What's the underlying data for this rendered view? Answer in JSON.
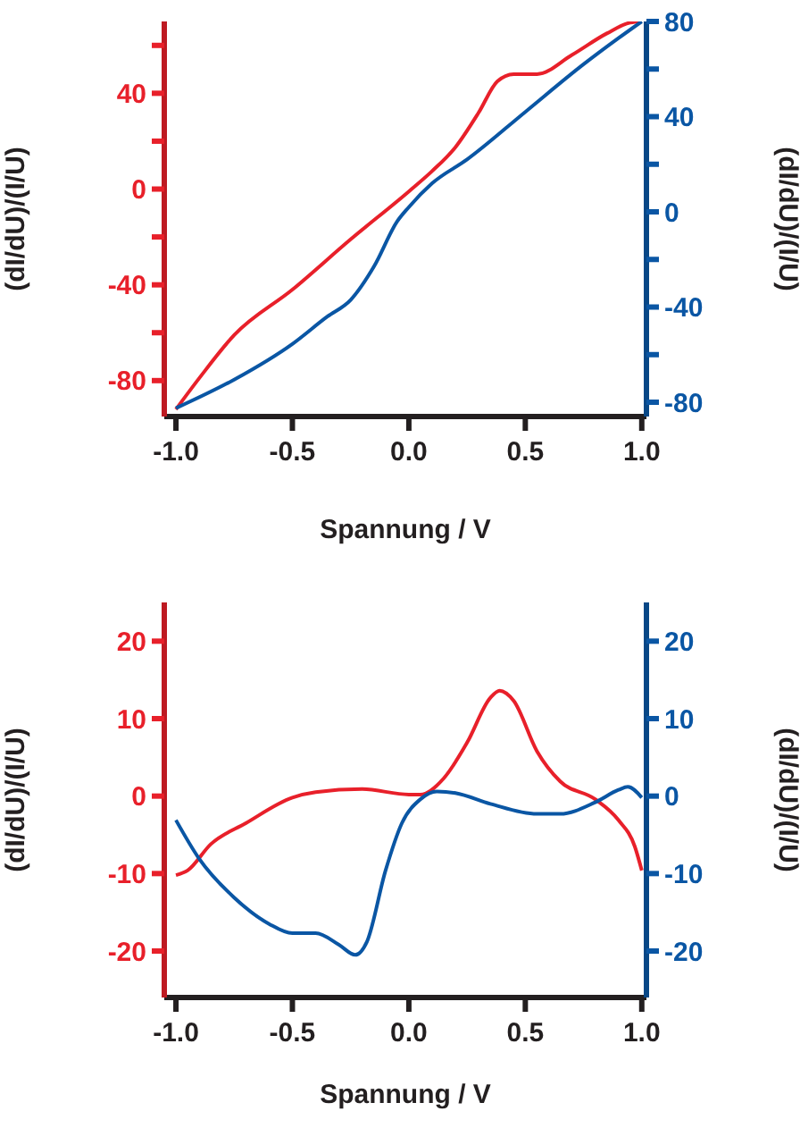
{
  "chart_data": [
    {
      "type": "line",
      "xlabel": "Spannung / V",
      "ylabel": "(dI/dU)/(I/U)",
      "y2label": "(dI/dU)/(I/U)",
      "xlim": [
        -1.05,
        1.02
      ],
      "xticks": [
        {
          "value": -1,
          "label": "-1.0"
        },
        {
          "value": -0.5,
          "label": "-0.5"
        },
        {
          "value": 0,
          "label": "0.0"
        },
        {
          "value": 0.5,
          "label": "0.5"
        },
        {
          "value": 1,
          "label": "1.0"
        }
      ],
      "ylim": [
        -95,
        70
      ],
      "yticks": [
        -80,
        {
          "value": -60,
          "label": null
        },
        -40,
        {
          "value": -20,
          "label": null
        },
        0,
        {
          "value": 20,
          "label": null
        },
        40,
        {
          "value": 60,
          "label": null
        }
      ],
      "y2lim": [
        -86,
        80
      ],
      "y2ticks": [
        -80,
        {
          "value": -60,
          "label": null
        },
        -40,
        {
          "value": -20,
          "label": null
        },
        0,
        {
          "value": 20,
          "label": null
        },
        40,
        {
          "value": 60,
          "label": null
        },
        80
      ],
      "series": [
        {
          "color": "#e8202a",
          "axis": "y",
          "x": [
            -1,
            -0.9,
            -0.75,
            -0.5,
            -0.25,
            0,
            0.1,
            0.2,
            0.3,
            0.38,
            0.45,
            0.55,
            0.7,
            0.85,
            0.95,
            1
          ],
          "values": [
            -92,
            -79,
            -61,
            -42,
            -21,
            -1,
            7.5,
            17.5,
            32,
            45,
            48,
            48,
            56,
            65,
            69.5,
            70
          ]
        },
        {
          "color": "#0a56a4",
          "axis": "y2",
          "x": [
            -1,
            -0.75,
            -0.5,
            -0.35,
            -0.25,
            -0.15,
            -0.05,
            0,
            0.1,
            0.25,
            0.5,
            0.75,
            0.9,
            1
          ],
          "values": [
            -82.5,
            -70.5,
            -55.5,
            -44,
            -37,
            -23,
            -4,
            2,
            12,
            22,
            42,
            62,
            73,
            80
          ]
        }
      ]
    },
    {
      "type": "line",
      "xlabel": "Spannung / V",
      "ylabel": "(dI/dU)/(I/U)",
      "y2label": "(dI/dU)/(I/U)",
      "xlim": [
        -1.05,
        1.02
      ],
      "xticks": [
        {
          "value": -1,
          "label": "-1.0"
        },
        {
          "value": -0.5,
          "label": "-0.5"
        },
        {
          "value": 0,
          "label": "0.0"
        },
        {
          "value": 0.5,
          "label": "0.5"
        },
        {
          "value": 1,
          "label": "1.0"
        }
      ],
      "ylim": [
        -26,
        25
      ],
      "yticks": [
        -20,
        -10,
        0,
        10,
        20
      ],
      "y2lim": [
        -26,
        25
      ],
      "y2ticks": [
        -20,
        -10,
        0,
        10,
        20
      ],
      "series": [
        {
          "color": "#e8202a",
          "axis": "y",
          "x": [
            -1,
            -0.95,
            -0.85,
            -0.7,
            -0.5,
            -0.4,
            -0.2,
            0,
            0.05,
            0.15,
            0.25,
            0.35,
            0.39,
            0.45,
            0.55,
            0.65,
            0.8,
            0.9,
            0.97,
            1
          ],
          "values": [
            -10.2,
            -9.6,
            -6.2,
            -3.5,
            -0.2,
            0.5,
            0.9,
            0.2,
            0.2,
            2.3,
            6.9,
            12.7,
            13.6,
            12.3,
            5.8,
            1.9,
            -0.4,
            -3.1,
            -6.5,
            -9.6
          ]
        },
        {
          "color": "#0a56a4",
          "axis": "y2",
          "x": [
            -1,
            -0.9,
            -0.75,
            -0.6,
            -0.5,
            -0.4,
            -0.3,
            -0.23,
            -0.18,
            -0.1,
            -0.03,
            0.05,
            0.12,
            0.2,
            0.35,
            0.55,
            0.65,
            0.8,
            0.9,
            0.94,
            1
          ],
          "values": [
            -3.1,
            -8.1,
            -13.1,
            -16.5,
            -17.7,
            -17.7,
            -19.2,
            -20.5,
            -18.8,
            -9.6,
            -3.5,
            -0.4,
            0.6,
            0.4,
            -1,
            -2.3,
            -2.3,
            -0.8,
            0.8,
            1.2,
            -0.2
          ]
        }
      ]
    }
  ]
}
